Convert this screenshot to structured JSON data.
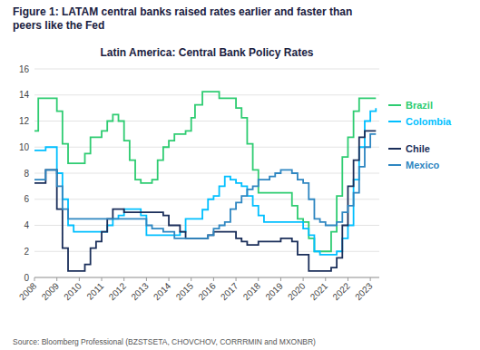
{
  "chart_data": {
    "type": "step",
    "title": "Latin America: Central Bank Policy Rates",
    "subtitle": "Figure 1: LATAM central banks raised rates earlier and faster than\npeers like the Fed",
    "annotations": [
      "Source: Bloomberg Professional (BZSTSETA, CHOVCHOV, CORRRMIN and MXONBR)"
    ],
    "xlim": [
      2008,
      2023.4
    ],
    "xticks": [
      2008,
      2009,
      2010,
      2011,
      2012,
      2013,
      2014,
      2015,
      2016,
      2017,
      2018,
      2019,
      2020,
      2021,
      2022,
      2023
    ],
    "ylim": [
      0,
      16
    ],
    "yticks": [
      0,
      2,
      4,
      6,
      8,
      10,
      12,
      14,
      16
    ],
    "grid": true,
    "legend": "right",
    "series": [
      {
        "name": "Brazil",
        "color": "#2ecc71",
        "x": [
          2008.0,
          2008.17,
          2008.5,
          2008.75,
          2008.92,
          2009.0,
          2009.25,
          2009.5,
          2009.75,
          2010.0,
          2010.25,
          2010.5,
          2010.75,
          2011.0,
          2011.25,
          2011.5,
          2011.75,
          2012.0,
          2012.25,
          2012.5,
          2012.75,
          2013.0,
          2013.25,
          2013.5,
          2013.75,
          2014.0,
          2014.25,
          2014.5,
          2014.75,
          2015.0,
          2015.17,
          2015.5,
          2015.75,
          2016.0,
          2016.25,
          2016.5,
          2016.75,
          2017.0,
          2017.25,
          2017.5,
          2017.75,
          2018.0,
          2018.25,
          2018.5,
          2018.75,
          2019.0,
          2019.25,
          2019.5,
          2019.75,
          2020.0,
          2020.25,
          2020.5,
          2020.75,
          2021.0,
          2021.25,
          2021.5,
          2021.75,
          2022.0,
          2022.25,
          2022.5,
          2022.75,
          2023.0,
          2023.25
        ],
        "values": [
          11.25,
          13.75,
          13.75,
          13.75,
          13.75,
          12.75,
          10.25,
          8.75,
          8.75,
          8.75,
          9.5,
          10.75,
          10.75,
          11.25,
          12.0,
          12.5,
          12.0,
          10.5,
          9.0,
          7.5,
          7.25,
          7.25,
          7.5,
          9.0,
          10.0,
          10.5,
          11.0,
          11.0,
          11.25,
          12.25,
          13.25,
          14.25,
          14.25,
          14.25,
          13.75,
          13.75,
          13.75,
          13.0,
          12.25,
          10.25,
          8.25,
          6.5,
          6.5,
          6.5,
          6.5,
          6.5,
          6.5,
          5.5,
          4.5,
          4.25,
          3.0,
          2.0,
          2.0,
          2.0,
          3.5,
          6.25,
          9.25,
          10.75,
          12.75,
          13.75,
          13.75,
          13.75,
          13.75
        ]
      },
      {
        "name": "Colombia",
        "color": "#00bfff",
        "x": [
          2008.0,
          2008.25,
          2008.5,
          2008.75,
          2009.0,
          2009.25,
          2009.5,
          2009.75,
          2010.0,
          2010.25,
          2010.5,
          2010.75,
          2011.0,
          2011.25,
          2011.5,
          2011.75,
          2012.0,
          2012.25,
          2012.5,
          2012.75,
          2013.0,
          2013.25,
          2013.5,
          2013.75,
          2014.0,
          2014.25,
          2014.5,
          2014.75,
          2015.0,
          2015.25,
          2015.5,
          2015.75,
          2016.0,
          2016.25,
          2016.5,
          2016.75,
          2017.0,
          2017.25,
          2017.5,
          2017.75,
          2018.0,
          2018.25,
          2018.5,
          2018.75,
          2019.0,
          2019.25,
          2019.5,
          2019.75,
          2020.0,
          2020.25,
          2020.5,
          2020.75,
          2021.0,
          2021.25,
          2021.5,
          2021.75,
          2022.0,
          2022.25,
          2022.5,
          2022.75,
          2023.0,
          2023.25
        ],
        "values": [
          9.75,
          9.75,
          10.0,
          10.0,
          8.0,
          6.0,
          4.0,
          3.5,
          3.5,
          3.5,
          3.5,
          3.5,
          3.5,
          4.0,
          4.5,
          4.75,
          5.25,
          5.25,
          5.25,
          4.75,
          3.25,
          3.25,
          3.25,
          3.25,
          3.25,
          3.25,
          3.5,
          4.5,
          4.5,
          4.5,
          5.2,
          6.0,
          6.25,
          7.0,
          7.75,
          7.5,
          7.25,
          7.0,
          6.25,
          5.5,
          4.75,
          4.25,
          4.25,
          4.25,
          4.25,
          4.25,
          4.25,
          4.25,
          3.75,
          3.25,
          2.0,
          1.75,
          1.75,
          1.75,
          2.0,
          3.0,
          4.0,
          7.5,
          10.0,
          12.0,
          12.75,
          13.0
        ]
      },
      {
        "name": "Chile",
        "color": "#1a2e5a",
        "x": [
          2008.0,
          2008.25,
          2008.5,
          2008.75,
          2009.0,
          2009.25,
          2009.5,
          2009.75,
          2010.0,
          2010.25,
          2010.5,
          2010.75,
          2011.0,
          2011.25,
          2011.5,
          2011.75,
          2012.0,
          2012.25,
          2012.5,
          2012.75,
          2013.0,
          2013.25,
          2013.5,
          2013.75,
          2014.0,
          2014.25,
          2014.5,
          2014.75,
          2015.0,
          2015.25,
          2015.5,
          2015.75,
          2016.0,
          2016.25,
          2016.5,
          2016.75,
          2017.0,
          2017.25,
          2017.5,
          2017.75,
          2018.0,
          2018.25,
          2018.5,
          2018.75,
          2019.0,
          2019.25,
          2019.5,
          2019.75,
          2020.0,
          2020.25,
          2020.5,
          2020.75,
          2021.0,
          2021.25,
          2021.5,
          2021.75,
          2022.0,
          2022.25,
          2022.5,
          2022.75,
          2023.0,
          2023.25
        ],
        "values": [
          7.25,
          7.25,
          8.25,
          8.25,
          5.25,
          2.25,
          0.5,
          0.5,
          0.5,
          1.0,
          2.25,
          2.75,
          3.5,
          4.5,
          5.25,
          5.25,
          5.0,
          5.0,
          5.0,
          5.0,
          5.0,
          5.0,
          5.0,
          4.75,
          4.0,
          4.0,
          3.5,
          3.0,
          3.0,
          3.0,
          3.0,
          3.25,
          3.5,
          3.5,
          3.5,
          3.5,
          3.0,
          2.75,
          2.5,
          2.5,
          2.75,
          2.75,
          2.75,
          2.75,
          3.0,
          3.0,
          2.75,
          1.75,
          1.75,
          0.5,
          0.5,
          0.5,
          0.5,
          0.75,
          1.5,
          4.0,
          7.0,
          9.0,
          10.75,
          11.25,
          11.25,
          11.25
        ]
      },
      {
        "name": "Mexico",
        "color": "#2e86c1",
        "x": [
          2008.0,
          2008.25,
          2008.5,
          2008.75,
          2009.0,
          2009.25,
          2009.5,
          2009.75,
          2010.0,
          2010.25,
          2010.5,
          2010.75,
          2011.0,
          2011.25,
          2011.5,
          2011.75,
          2012.0,
          2012.25,
          2012.5,
          2012.75,
          2013.0,
          2013.25,
          2013.5,
          2013.75,
          2014.0,
          2014.25,
          2014.5,
          2014.75,
          2015.0,
          2015.25,
          2015.5,
          2015.75,
          2016.0,
          2016.25,
          2016.5,
          2016.75,
          2017.0,
          2017.25,
          2017.5,
          2017.75,
          2018.0,
          2018.25,
          2018.5,
          2018.75,
          2019.0,
          2019.25,
          2019.5,
          2019.75,
          2020.0,
          2020.25,
          2020.5,
          2020.75,
          2021.0,
          2021.25,
          2021.5,
          2021.75,
          2022.0,
          2022.25,
          2022.5,
          2022.75,
          2023.0,
          2023.25
        ],
        "values": [
          7.5,
          7.5,
          8.25,
          8.25,
          7.0,
          5.25,
          4.5,
          4.5,
          4.5,
          4.5,
          4.5,
          4.5,
          4.5,
          4.5,
          4.5,
          4.5,
          4.5,
          4.5,
          4.5,
          4.5,
          4.0,
          3.75,
          3.75,
          3.5,
          3.5,
          3.0,
          3.0,
          3.0,
          3.0,
          3.0,
          3.0,
          3.25,
          3.75,
          4.0,
          4.25,
          5.25,
          5.75,
          6.25,
          6.75,
          7.0,
          7.5,
          7.5,
          7.75,
          8.0,
          8.25,
          8.25,
          8.0,
          7.5,
          7.25,
          6.0,
          4.5,
          4.25,
          4.0,
          4.0,
          4.25,
          5.0,
          5.5,
          6.5,
          8.5,
          10.0,
          11.0,
          11.0
        ]
      }
    ]
  }
}
